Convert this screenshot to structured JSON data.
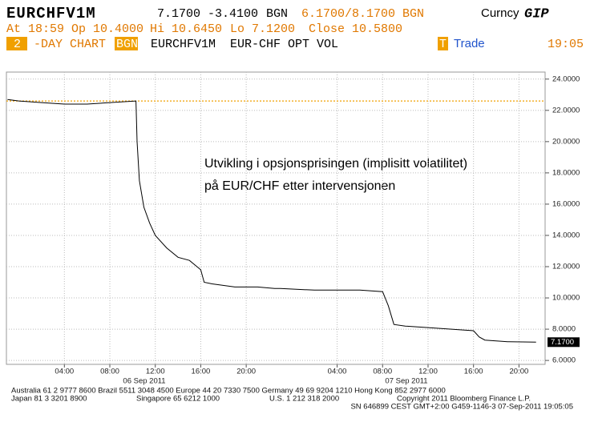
{
  "header": {
    "ticker": "EURCHFV1M",
    "price": "7.1700",
    "change": "-3.4100",
    "source": "BGN",
    "bid_ask": "6.1700/8.1700",
    "bid_ask_source": "BGN",
    "market": "Curncy",
    "function": "GIP",
    "at": "At 18:59",
    "open": "Op 10.4000",
    "high": "Hi 10.6450",
    "low": "Lo 7.1200",
    "close": "Close 10.5800",
    "days": "2",
    "chart_kind": "-DAY CHART",
    "source_box": "BGN",
    "security": "EURCHFV1M",
    "description": "EUR-CHF OPT VOL",
    "mode_key": "T",
    "mode": "Trade",
    "time": "19:05"
  },
  "chart_data": {
    "type": "line",
    "annotation": [
      "Utvikling i opsjonsprisingen (implisitt volatilitet)",
      "på EUR/CHF etter intervensjonen"
    ],
    "x": [
      -1.0,
      0,
      2,
      4,
      6,
      8,
      10.3,
      10.4,
      10.6,
      11,
      11.5,
      12,
      13,
      14,
      15,
      16,
      16.3,
      17,
      19,
      21,
      22.5,
      23,
      26,
      30,
      32,
      32.5,
      33,
      34,
      36,
      40,
      40.5,
      41,
      43,
      45.5
    ],
    "values": [
      22.7,
      22.6,
      22.5,
      22.4,
      22.4,
      22.5,
      22.6,
      20,
      17.5,
      15.8,
      14.8,
      14,
      13.2,
      12.6,
      12.4,
      11.8,
      11,
      10.9,
      10.7,
      10.7,
      10.6,
      10.6,
      10.5,
      10.5,
      10.4,
      9.5,
      8.3,
      8.2,
      8.1,
      7.9,
      7.5,
      7.3,
      7.2,
      7.17
    ],
    "color": "#000000",
    "reference_line": 22.6,
    "reference_color": "#f0a000",
    "xlim": [
      -1.1,
      46.3
    ],
    "ylim": [
      5.75,
      24.45
    ],
    "xticks": [
      {
        "value": 4,
        "label": "04:00"
      },
      {
        "value": 8,
        "label": "08:00"
      },
      {
        "value": 12,
        "label": "12:00"
      },
      {
        "value": 16,
        "label": "16:00"
      },
      {
        "value": 20,
        "label": "20:00"
      },
      {
        "value": 28,
        "label": "04:00"
      },
      {
        "value": 32,
        "label": "08:00"
      },
      {
        "value": 36,
        "label": "12:00"
      },
      {
        "value": 40,
        "label": "16:00"
      },
      {
        "value": 44,
        "label": "20:00"
      }
    ],
    "yticks": [
      {
        "value": 6,
        "label": "6.0000"
      },
      {
        "value": 8,
        "label": "8.0000"
      },
      {
        "value": 10,
        "label": "10.0000"
      },
      {
        "value": 12,
        "label": "12.0000"
      },
      {
        "value": 14,
        "label": "14.0000"
      },
      {
        "value": 16,
        "label": "16.0000"
      },
      {
        "value": 18,
        "label": "18.0000"
      },
      {
        "value": 20,
        "label": "20.0000"
      },
      {
        "value": 22,
        "label": "22.0000"
      },
      {
        "value": 24,
        "label": "24.0000"
      }
    ],
    "date_labels": [
      "06 Sep 2011",
      "07 Sep 2011"
    ],
    "grid": true
  },
  "footer": {
    "line1": "Australia 61 2 9777 8600 Brazil 5511 3048 4500 Europe 44 20 7330 7500 Germany 49 69 9204 1210 Hong Kong 852 2977 6000",
    "japan": "Japan 81 3 3201 8900",
    "singapore": "Singapore 65 6212 1000",
    "us": "U.S. 1 212 318 2000",
    "copyright": "Copyright 2011 Bloomberg Finance L.P.",
    "line3": "SN 646899 CEST GMT+2:00 G459-1146-3 07-Sep-2011 19:05:05"
  }
}
